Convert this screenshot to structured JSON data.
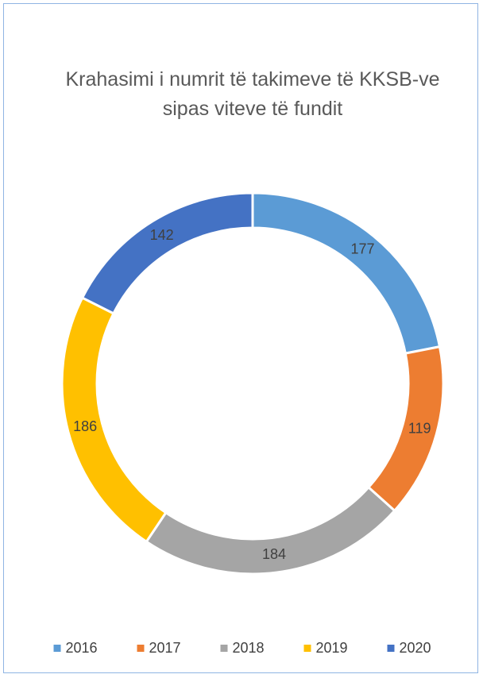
{
  "chart_data": {
    "type": "donut",
    "title": "Krahasimi i numrit të takimeve të KKSB-ve sipas viteve të fundit",
    "categories": [
      "2016",
      "2017",
      "2018",
      "2019",
      "2020"
    ],
    "values": [
      177,
      119,
      184,
      186,
      142
    ],
    "colors": [
      "#5b9bd5",
      "#ed7d31",
      "#a5a5a5",
      "#ffc000",
      "#4472c4"
    ],
    "legend": "bottom"
  }
}
